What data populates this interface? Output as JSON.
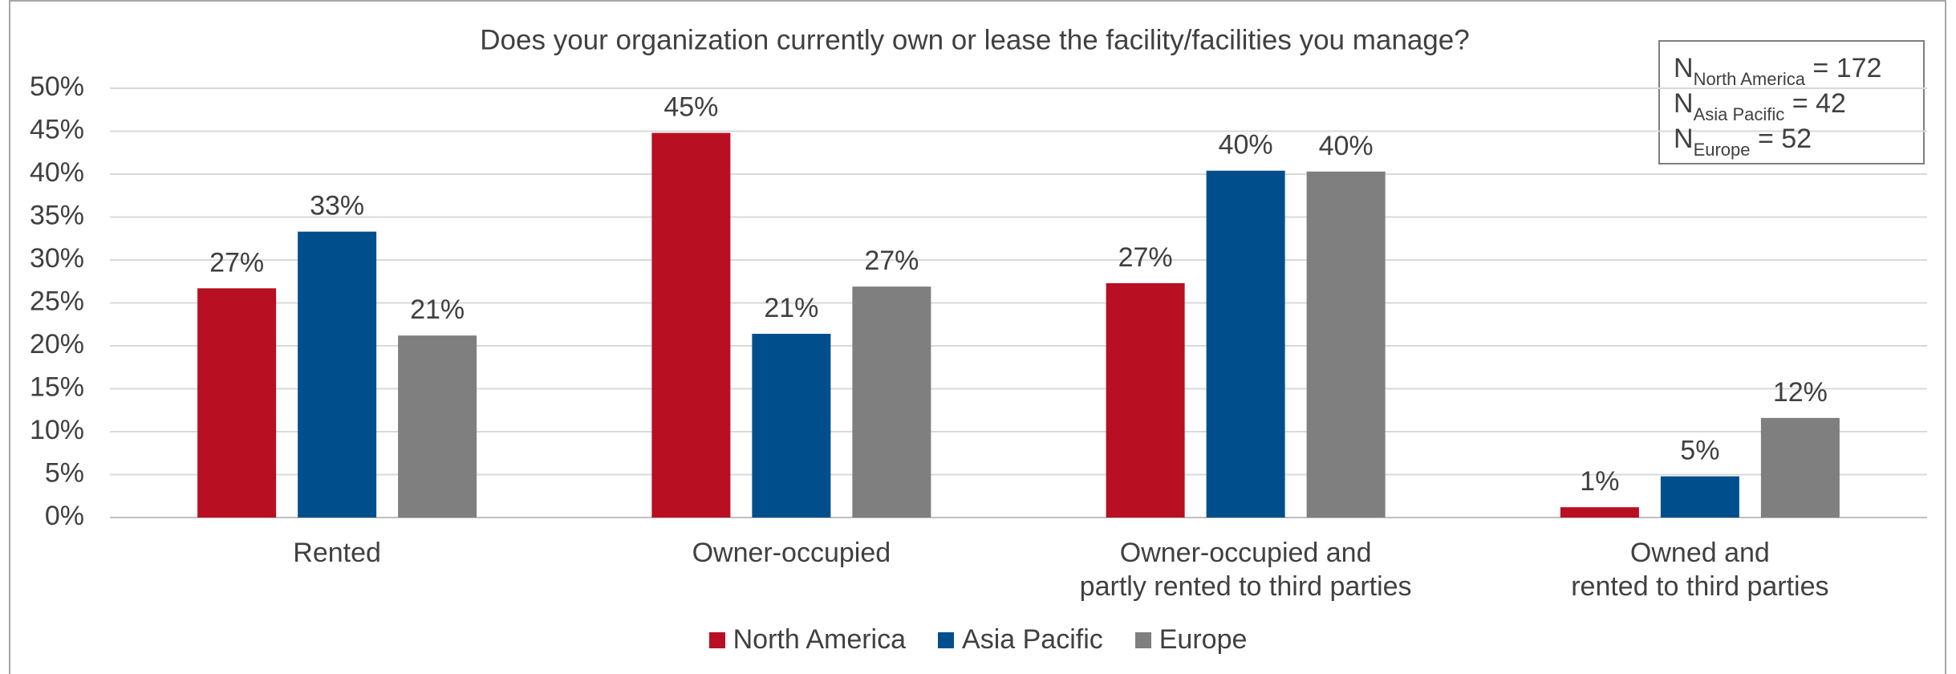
{
  "chart_data": {
    "type": "bar",
    "title": "Does your organization currently own or lease the facility/facilities you manage?",
    "categories": [
      "Rented",
      "Owner-occupied",
      "Owner-occupied and\npartly rented to third parties",
      "Owned and\nrented to third parties"
    ],
    "series": [
      {
        "name": "North America",
        "color": "#b80f22",
        "values": [
          26.7,
          44.8,
          27.3,
          1.2
        ],
        "value_labels": [
          "27%",
          "45%",
          "27%",
          "1%"
        ]
      },
      {
        "name": "Asia Pacific",
        "color": "#004f8c",
        "values": [
          33.3,
          21.4,
          40.4,
          4.8
        ],
        "value_labels": [
          "33%",
          "21%",
          "40%",
          "5%"
        ]
      },
      {
        "name": "Europe",
        "color": "#7f7f7f",
        "values": [
          21.2,
          26.9,
          40.3,
          11.6
        ],
        "value_labels": [
          "21%",
          "27%",
          "40%",
          "12%"
        ]
      }
    ],
    "ylim": [
      0,
      50
    ],
    "yticks": [
      {
        "value": 0,
        "label": "0%"
      },
      {
        "value": 5,
        "label": "5%"
      },
      {
        "value": 10,
        "label": "10%"
      },
      {
        "value": 15,
        "label": "15%"
      },
      {
        "value": 20,
        "label": "20%"
      },
      {
        "value": 25,
        "label": "25%"
      },
      {
        "value": 30,
        "label": "30%"
      },
      {
        "value": 35,
        "label": "35%"
      },
      {
        "value": 40,
        "label": "40%"
      },
      {
        "value": 45,
        "label": "45%"
      },
      {
        "value": 50,
        "label": "50%"
      }
    ],
    "grid": true,
    "legend": "bottom",
    "annotation": [
      {
        "base": "N",
        "sub": "North America",
        "text": " = 172"
      },
      {
        "base": "N",
        "sub": "Asia Pacific",
        "text": " = 42"
      },
      {
        "base": "N",
        "sub": "Europe",
        "text": " = 52"
      }
    ]
  }
}
